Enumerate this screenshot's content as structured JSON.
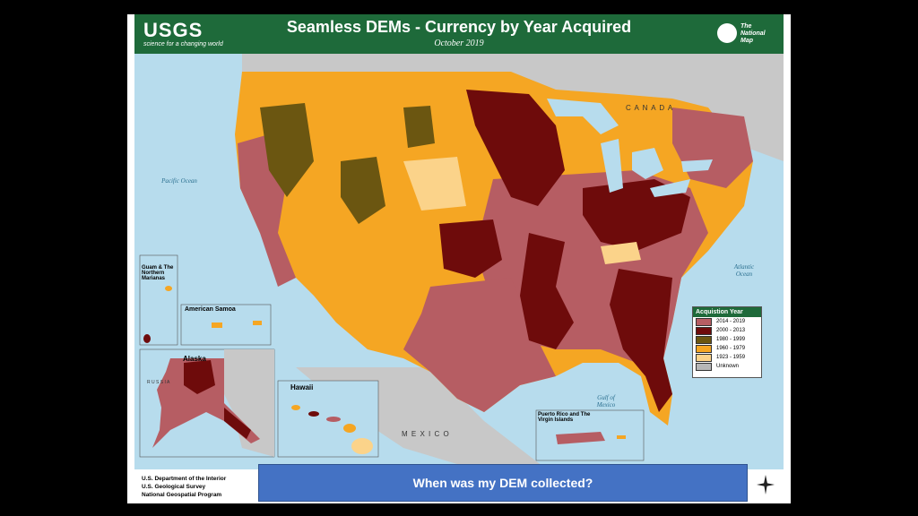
{
  "header": {
    "org": "USGS",
    "org_tagline": "science for a changing world",
    "title": "Seamless DEMs - Currency by Year Acquired",
    "date": "October 2019",
    "program_logo_text": "The National Map"
  },
  "map": {
    "labels": {
      "canada": "C A N A D A",
      "mexico": "M E X I C O",
      "russia": "R U S S I A",
      "canada_ak": "C A N A D A",
      "pacific": "Pacific Ocean",
      "atlantic": "Atlantic Ocean",
      "gulf": "Gulf of Mexico"
    },
    "insets": {
      "guam": "Guam & The Northern Marianas",
      "samoa": "American Samoa",
      "alaska": "Alaska",
      "hawaii": "Hawaii",
      "pr": "Puerto Rico and The Virgin Islands"
    },
    "colors": {
      "ocean": "#b7dced",
      "land_other": "#c8c8c8",
      "c2014": "#b65d63",
      "c2000": "#6e0b0b",
      "c1980": "#6b5611",
      "c1960": "#f5a623",
      "c1923": "#fbd38a",
      "unknown": "#b7b7b7"
    }
  },
  "legend": {
    "title": "Acquistion Year",
    "items": [
      {
        "label": "2014 - 2019",
        "color": "#b65d63"
      },
      {
        "label": "2000 - 2013",
        "color": "#6e0b0b"
      },
      {
        "label": "1980 - 1999",
        "color": "#6b5611"
      },
      {
        "label": "1960 - 1979",
        "color": "#f5a623"
      },
      {
        "label": "1923 - 1959",
        "color": "#fbd38a"
      },
      {
        "label": "Unknown",
        "color": "#b7b7b7"
      }
    ]
  },
  "footer": {
    "line1": "U.S. Department of the Interior",
    "line2": "U.S. Geological Survey",
    "line3": "National Geospatial Program"
  },
  "banner": "When was my DEM collected?"
}
